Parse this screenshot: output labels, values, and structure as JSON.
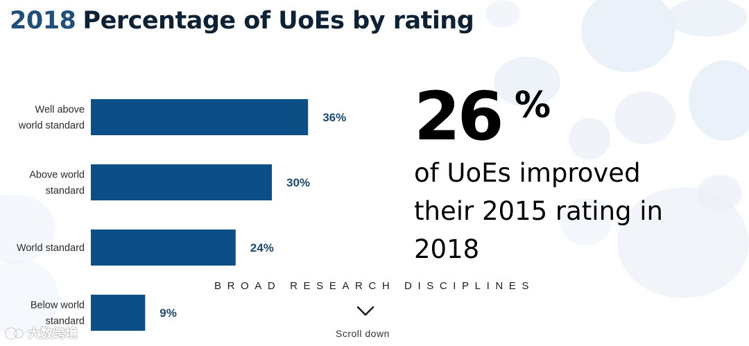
{
  "header": {
    "year": "2018",
    "title": "Percentage of UoEs by rating"
  },
  "chart_data": {
    "type": "bar",
    "orientation": "horizontal",
    "categories": [
      [
        "Well above",
        "world standard"
      ],
      [
        "Above world",
        "standard"
      ],
      [
        "World standard"
      ],
      [
        "Below world",
        "standard"
      ]
    ],
    "values": [
      36,
      30,
      24,
      9
    ],
    "value_labels": [
      "36%",
      "30%",
      "24%",
      "9%"
    ],
    "xlim": [
      0,
      100
    ],
    "grid": false,
    "legend": "none",
    "bar_color": "#0b4f86",
    "label_color": "#1f4a70"
  },
  "highlight": {
    "number": "26",
    "unit": "%",
    "lines": [
      "of UoEs improved",
      "their 2015 rating in",
      "2018"
    ]
  },
  "nav": {
    "section_link": "BROAD RESEARCH DISCIPLINES",
    "scroll_label": "Scroll down",
    "scroll_icon": "chevron-down-icon"
  },
  "watermark": {
    "text": "大数跨境",
    "icon": "watermark-logo-icon"
  }
}
